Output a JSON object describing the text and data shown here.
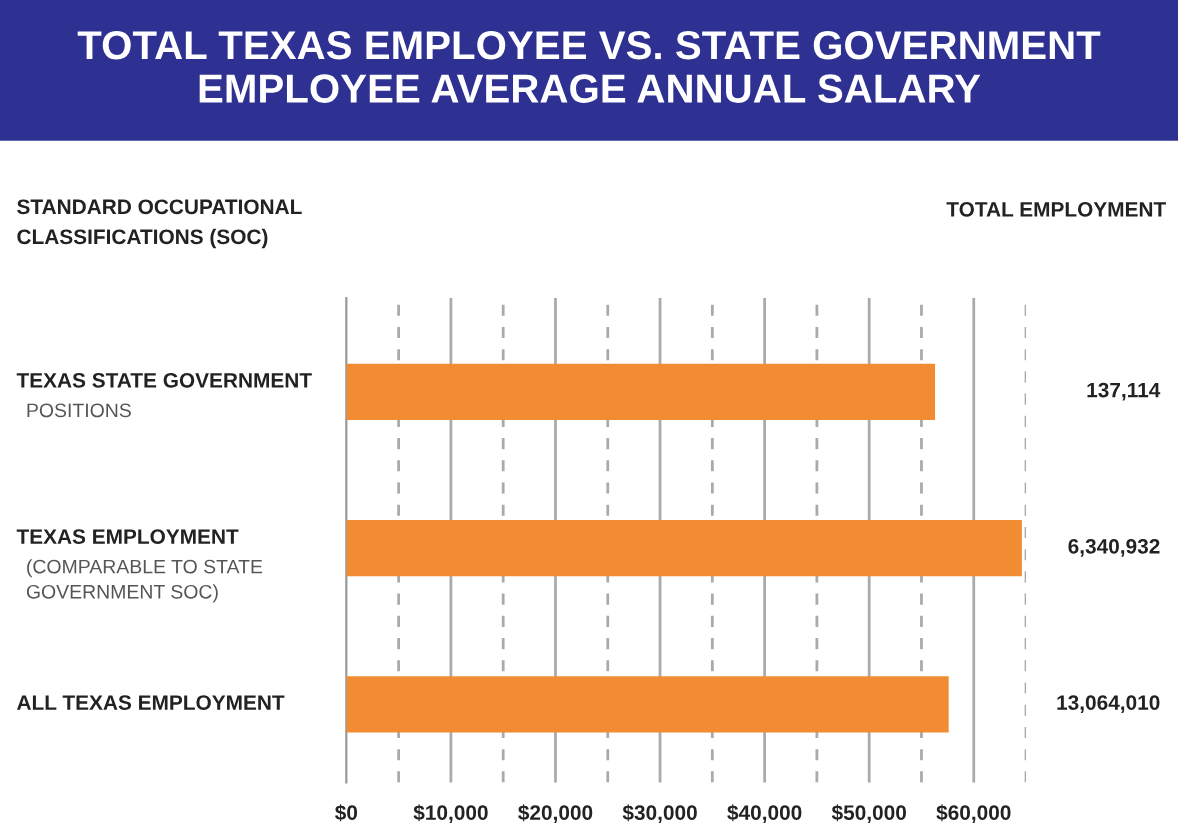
{
  "chart_data": {
    "type": "bar",
    "orientation": "horizontal",
    "title": "TOTAL TEXAS EMPLOYEE VS. STATE GOVERNMENT\nEMPLOYEE AVERAGE ANNUAL SALARY",
    "ylabel": "STANDARD OCCUPATIONAL\nCLASSIFICATIONS (SOC)",
    "y2label": "TOTAL EMPLOYMENT",
    "categories": [
      "TEXAS STATE GOVERNMENT\nPOSITIONS",
      "TEXAS EMPLOYMENT\n(COMPARABLE TO STATE\nGOVERNMENT SOC)",
      "ALL TEXAS EMPLOYMENT"
    ],
    "values": [
      56300,
      64600,
      57600
    ],
    "color": "#f28c33",
    "annotations": [
      "137,114",
      "6,340,932",
      "13,064,010"
    ],
    "xlim": [
      0,
      65000
    ],
    "xticks": [
      {
        "value": 0,
        "label": "$0"
      },
      {
        "value": 5000,
        "label": null
      },
      {
        "value": 10000,
        "label": "$10,000"
      },
      {
        "value": 15000,
        "label": null
      },
      {
        "value": 20000,
        "label": "$20,000"
      },
      {
        "value": 25000,
        "label": null
      },
      {
        "value": 30000,
        "label": "$30,000"
      },
      {
        "value": 35000,
        "label": null
      },
      {
        "value": 40000,
        "label": "$40,000"
      },
      {
        "value": 45000,
        "label": null
      },
      {
        "value": 50000,
        "label": "$50,000"
      },
      {
        "value": 55000,
        "label": null
      },
      {
        "value": 60000,
        "label": "$60,000"
      },
      {
        "value": 65000,
        "label": null
      }
    ],
    "grid": "x",
    "legend": false
  }
}
